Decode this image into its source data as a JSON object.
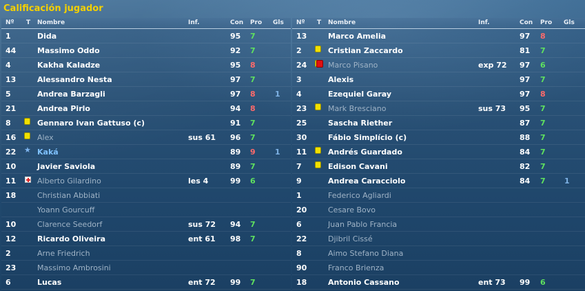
{
  "screen": {
    "title": "Calificación jugador"
  },
  "columns": {
    "num": "Nº",
    "t": "T",
    "name": "Nombre",
    "inf": "Inf.",
    "con": "Con",
    "pro": "Pro",
    "gls": "Gls"
  },
  "colors": {
    "title": "#f4d000",
    "good_rating": "#5fe15f",
    "bad_rating": "#ff6a6a",
    "goals": "#7fb3e6",
    "inactive": "#9fb3c6"
  },
  "left": [
    {
      "num": "1",
      "icon": "",
      "name": "Dida",
      "inf": "",
      "con": "95",
      "pro": "7",
      "pro_color": "green",
      "gls": "",
      "state": "active"
    },
    {
      "num": "44",
      "icon": "",
      "name": "Massimo Oddo",
      "inf": "",
      "con": "92",
      "pro": "7",
      "pro_color": "green",
      "gls": "",
      "state": "active"
    },
    {
      "num": "4",
      "icon": "",
      "name": "Kakha Kaladze",
      "inf": "",
      "con": "95",
      "pro": "8",
      "pro_color": "red",
      "gls": "",
      "state": "active"
    },
    {
      "num": "13",
      "icon": "",
      "name": "Alessandro Nesta",
      "inf": "",
      "con": "97",
      "pro": "7",
      "pro_color": "green",
      "gls": "",
      "state": "active"
    },
    {
      "num": "5",
      "icon": "",
      "name": "Andrea Barzagli",
      "inf": "",
      "con": "97",
      "pro": "8",
      "pro_color": "red",
      "gls": "1",
      "state": "active"
    },
    {
      "num": "21",
      "icon": "",
      "name": "Andrea Pirlo",
      "inf": "",
      "con": "94",
      "pro": "8",
      "pro_color": "red",
      "gls": "",
      "state": "active"
    },
    {
      "num": "8",
      "icon": "yellow-card",
      "name": "Gennaro Ivan Gattuso (c)",
      "inf": "",
      "con": "91",
      "pro": "7",
      "pro_color": "green",
      "gls": "",
      "state": "active"
    },
    {
      "num": "16",
      "icon": "yellow-card",
      "name": "Alex",
      "inf": "sus 61",
      "con": "96",
      "pro": "7",
      "pro_color": "green",
      "gls": "",
      "state": "inactive"
    },
    {
      "num": "22",
      "icon": "star",
      "name": "Kaká",
      "inf": "",
      "con": "89",
      "pro": "9",
      "pro_color": "red",
      "gls": "1",
      "state": "star"
    },
    {
      "num": "10",
      "icon": "",
      "name": "Javier Saviola",
      "inf": "",
      "con": "89",
      "pro": "7",
      "pro_color": "green",
      "gls": "",
      "state": "active"
    },
    {
      "num": "11",
      "icon": "injury",
      "name": "Alberto Gilardino",
      "inf": "les 4",
      "con": "99",
      "pro": "6",
      "pro_color": "green",
      "gls": "",
      "state": "inactive"
    },
    {
      "num": "18",
      "icon": "",
      "name": "Christian Abbiati",
      "inf": "",
      "con": "",
      "pro": "",
      "pro_color": "",
      "gls": "",
      "state": "inactive"
    },
    {
      "num": "",
      "icon": "",
      "name": "Yoann Gourcuff",
      "inf": "",
      "con": "",
      "pro": "",
      "pro_color": "",
      "gls": "",
      "state": "inactive"
    },
    {
      "num": "10",
      "icon": "",
      "name": "Clarence Seedorf",
      "inf": "sus 72",
      "con": "94",
      "pro": "7",
      "pro_color": "green",
      "gls": "",
      "state": "inactive"
    },
    {
      "num": "12",
      "icon": "",
      "name": "Ricardo Oliveira",
      "inf": "ent 61",
      "con": "98",
      "pro": "7",
      "pro_color": "green",
      "gls": "",
      "state": "active"
    },
    {
      "num": "2",
      "icon": "",
      "name": "Arne Friedrich",
      "inf": "",
      "con": "",
      "pro": "",
      "pro_color": "",
      "gls": "",
      "state": "inactive"
    },
    {
      "num": "23",
      "icon": "",
      "name": "Massimo Ambrosini",
      "inf": "",
      "con": "",
      "pro": "",
      "pro_color": "",
      "gls": "",
      "state": "inactive"
    },
    {
      "num": "6",
      "icon": "",
      "name": "Lucas",
      "inf": "ent 72",
      "con": "99",
      "pro": "7",
      "pro_color": "green",
      "gls": "",
      "state": "active"
    }
  ],
  "right": [
    {
      "num": "13",
      "icon": "",
      "name": "Marco Amelia",
      "inf": "",
      "con": "97",
      "pro": "8",
      "pro_color": "red",
      "gls": "",
      "state": "active"
    },
    {
      "num": "2",
      "icon": "yellow-card",
      "name": "Cristian Zaccardo",
      "inf": "",
      "con": "81",
      "pro": "7",
      "pro_color": "green",
      "gls": "",
      "state": "active"
    },
    {
      "num": "24",
      "icon": "red-card",
      "name": "Marco Pisano",
      "inf": "exp 72",
      "con": "97",
      "pro": "6",
      "pro_color": "green",
      "gls": "",
      "state": "inactive"
    },
    {
      "num": "3",
      "icon": "",
      "name": "Alexis",
      "inf": "",
      "con": "97",
      "pro": "7",
      "pro_color": "green",
      "gls": "",
      "state": "active"
    },
    {
      "num": "4",
      "icon": "",
      "name": "Ezequiel Garay",
      "inf": "",
      "con": "97",
      "pro": "8",
      "pro_color": "red",
      "gls": "",
      "state": "active"
    },
    {
      "num": "23",
      "icon": "yellow-card",
      "name": "Mark Bresciano",
      "inf": "sus 73",
      "con": "95",
      "pro": "7",
      "pro_color": "green",
      "gls": "",
      "state": "inactive"
    },
    {
      "num": "25",
      "icon": "",
      "name": "Sascha Riether",
      "inf": "",
      "con": "87",
      "pro": "7",
      "pro_color": "green",
      "gls": "",
      "state": "active"
    },
    {
      "num": "30",
      "icon": "",
      "name": "Fábio Simplício (c)",
      "inf": "",
      "con": "88",
      "pro": "7",
      "pro_color": "green",
      "gls": "",
      "state": "active"
    },
    {
      "num": "11",
      "icon": "yellow-card",
      "name": "Andrés Guardado",
      "inf": "",
      "con": "84",
      "pro": "7",
      "pro_color": "green",
      "gls": "",
      "state": "active"
    },
    {
      "num": "7",
      "icon": "yellow-card",
      "name": "Edison Cavani",
      "inf": "",
      "con": "82",
      "pro": "7",
      "pro_color": "green",
      "gls": "",
      "state": "active"
    },
    {
      "num": "9",
      "icon": "",
      "name": "Andrea Caracciolo",
      "inf": "",
      "con": "84",
      "pro": "7",
      "pro_color": "green",
      "gls": "1",
      "state": "active"
    },
    {
      "num": "1",
      "icon": "",
      "name": "Federico Agliardi",
      "inf": "",
      "con": "",
      "pro": "",
      "pro_color": "",
      "gls": "",
      "state": "inactive"
    },
    {
      "num": "20",
      "icon": "",
      "name": "Cesare Bovo",
      "inf": "",
      "con": "",
      "pro": "",
      "pro_color": "",
      "gls": "",
      "state": "inactive"
    },
    {
      "num": "6",
      "icon": "",
      "name": "Juan Pablo Francia",
      "inf": "",
      "con": "",
      "pro": "",
      "pro_color": "",
      "gls": "",
      "state": "inactive"
    },
    {
      "num": "22",
      "icon": "",
      "name": "Djibril Cissé",
      "inf": "",
      "con": "",
      "pro": "",
      "pro_color": "",
      "gls": "",
      "state": "inactive"
    },
    {
      "num": "8",
      "icon": "",
      "name": "Aimo Stefano Diana",
      "inf": "",
      "con": "",
      "pro": "",
      "pro_color": "",
      "gls": "",
      "state": "inactive"
    },
    {
      "num": "90",
      "icon": "",
      "name": "Franco Brienza",
      "inf": "",
      "con": "",
      "pro": "",
      "pro_color": "",
      "gls": "",
      "state": "inactive"
    },
    {
      "num": "18",
      "icon": "",
      "name": "Antonio Cassano",
      "inf": "ent 73",
      "con": "99",
      "pro": "6",
      "pro_color": "green",
      "gls": "",
      "state": "active"
    }
  ]
}
